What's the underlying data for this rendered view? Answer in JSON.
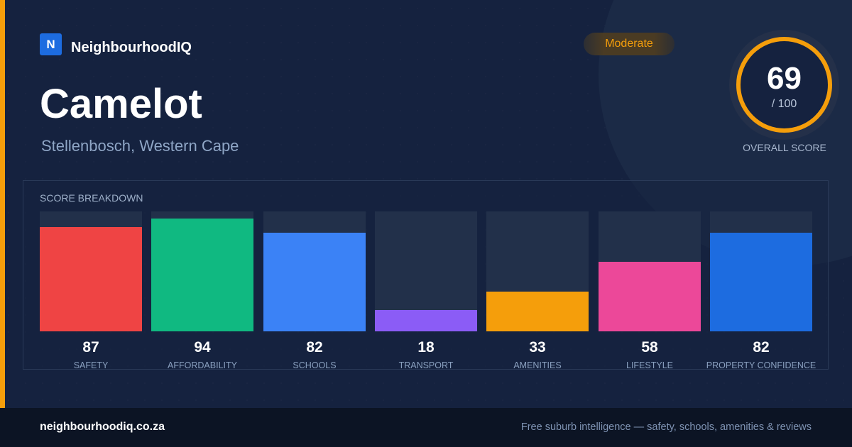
{
  "brand": {
    "logo_letter": "N",
    "name": "NeighbourhoodIQ"
  },
  "suburb": {
    "name": "Camelot",
    "location": "Stellenbosch, Western Cape"
  },
  "rating_badge": "Moderate",
  "overall": {
    "score": "69",
    "max": "/ 100",
    "label": "OVERALL SCORE",
    "ring_color": "#f59e0b"
  },
  "breakdown_title": "SCORE BREAKDOWN",
  "chart_data": {
    "type": "bar",
    "title": "SCORE BREAKDOWN",
    "categories": [
      "SAFETY",
      "AFFORDABILITY",
      "SCHOOLS",
      "TRANSPORT",
      "AMENITIES",
      "LIFESTYLE",
      "PROPERTY CONFIDENCE"
    ],
    "values": [
      87,
      94,
      82,
      18,
      33,
      58,
      82
    ],
    "colors": [
      "#ef4444",
      "#10b981",
      "#3b82f6",
      "#8b5cf6",
      "#f59e0b",
      "#ec4899",
      "#1d6ce0"
    ],
    "ylim": [
      0,
      100
    ]
  },
  "footer": {
    "url": "neighbourhoodiq.co.za",
    "tagline": "Free suburb intelligence — safety, schools, amenities & reviews"
  },
  "colors": {
    "accent": "#f59e0b",
    "background": "#15223f",
    "brand_blue": "#1d6ce0"
  }
}
